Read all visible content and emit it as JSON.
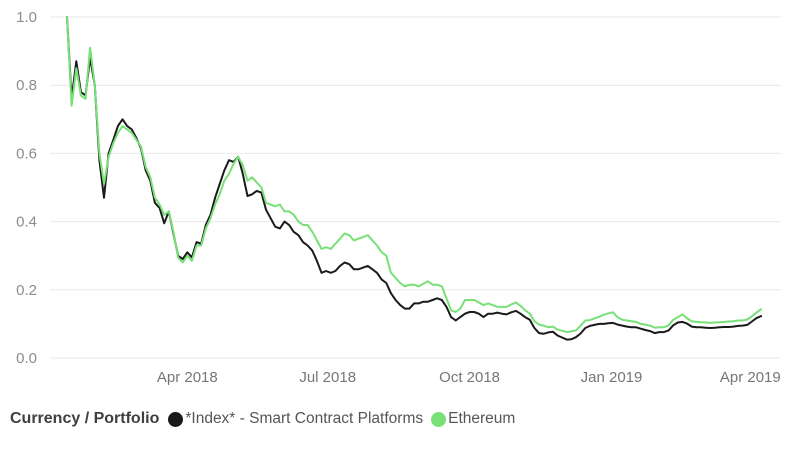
{
  "colors": {
    "background": "#ffffff",
    "gridline": "#e9e9e9",
    "y_label": "#8c8c8c",
    "x_label": "#767676",
    "legend_title": "#3f3f3f",
    "legend_text": "#565656"
  },
  "legend": {
    "title": "Currency / Portfolio"
  },
  "chart_data": {
    "type": "line",
    "title": "",
    "xlabel": "",
    "ylabel": "",
    "grid": "horizontal-only",
    "legend_position": "bottom-left",
    "x_axis": {
      "start_date": "2018-01-13",
      "end_date": "2019-04-08",
      "interval_days": 3,
      "tick_labels": [
        "Apr 2018",
        "Jul 2018",
        "Oct 2018",
        "Jan 2019",
        "Apr 2019"
      ],
      "tick_day_offsets": [
        78,
        169,
        261,
        353,
        443
      ]
    },
    "y_axis": {
      "range": [
        0.0,
        1.0
      ],
      "tick_labels": [
        "0.0",
        "0.2",
        "0.4",
        "0.6",
        "0.8",
        "1.0"
      ]
    },
    "series": [
      {
        "name": "*Index* - Smart Contract Platforms",
        "color": "#1a1a1a",
        "values": [
          1.0,
          0.76,
          0.87,
          0.78,
          0.77,
          0.88,
          0.8,
          0.58,
          0.47,
          0.6,
          0.64,
          0.68,
          0.7,
          0.68,
          0.67,
          0.645,
          0.615,
          0.55,
          0.52,
          0.455,
          0.44,
          0.395,
          0.43,
          0.365,
          0.3,
          0.29,
          0.31,
          0.295,
          0.34,
          0.335,
          0.39,
          0.42,
          0.47,
          0.51,
          0.55,
          0.58,
          0.575,
          0.59,
          0.54,
          0.475,
          0.48,
          0.49,
          0.485,
          0.435,
          0.41,
          0.385,
          0.38,
          0.4,
          0.39,
          0.37,
          0.36,
          0.34,
          0.33,
          0.315,
          0.285,
          0.25,
          0.255,
          0.25,
          0.255,
          0.27,
          0.28,
          0.275,
          0.26,
          0.26,
          0.265,
          0.27,
          0.26,
          0.25,
          0.23,
          0.22,
          0.19,
          0.17,
          0.155,
          0.145,
          0.145,
          0.16,
          0.16,
          0.165,
          0.165,
          0.17,
          0.175,
          0.17,
          0.15,
          0.12,
          0.11,
          0.12,
          0.13,
          0.135,
          0.135,
          0.13,
          0.12,
          0.13,
          0.13,
          0.133,
          0.13,
          0.128,
          0.134,
          0.138,
          0.13,
          0.12,
          0.112,
          0.088,
          0.073,
          0.071,
          0.075,
          0.077,
          0.066,
          0.06,
          0.054,
          0.055,
          0.061,
          0.072,
          0.088,
          0.094,
          0.097,
          0.1,
          0.1,
          0.102,
          0.103,
          0.098,
          0.095,
          0.092,
          0.09,
          0.09,
          0.086,
          0.082,
          0.079,
          0.073,
          0.076,
          0.076,
          0.081,
          0.096,
          0.104,
          0.106,
          0.101,
          0.092,
          0.09,
          0.09,
          0.089,
          0.088,
          0.089,
          0.09,
          0.091,
          0.091,
          0.092,
          0.094,
          0.095,
          0.097,
          0.107,
          0.117,
          0.123
        ]
      },
      {
        "name": "Ethereum",
        "color": "#77e077",
        "values": [
          1.0,
          0.74,
          0.85,
          0.77,
          0.76,
          0.91,
          0.8,
          0.6,
          0.51,
          0.59,
          0.63,
          0.66,
          0.68,
          0.67,
          0.66,
          0.64,
          0.62,
          0.56,
          0.53,
          0.47,
          0.45,
          0.42,
          0.43,
          0.37,
          0.295,
          0.28,
          0.3,
          0.285,
          0.33,
          0.33,
          0.38,
          0.41,
          0.45,
          0.48,
          0.52,
          0.54,
          0.57,
          0.59,
          0.565,
          0.52,
          0.53,
          0.515,
          0.5,
          0.455,
          0.45,
          0.445,
          0.45,
          0.43,
          0.43,
          0.42,
          0.4,
          0.39,
          0.39,
          0.37,
          0.345,
          0.32,
          0.325,
          0.32,
          0.335,
          0.35,
          0.365,
          0.36,
          0.345,
          0.35,
          0.355,
          0.36,
          0.345,
          0.33,
          0.31,
          0.3,
          0.25,
          0.235,
          0.22,
          0.21,
          0.215,
          0.215,
          0.21,
          0.218,
          0.225,
          0.215,
          0.215,
          0.21,
          0.175,
          0.14,
          0.135,
          0.145,
          0.17,
          0.17,
          0.17,
          0.163,
          0.155,
          0.16,
          0.155,
          0.15,
          0.15,
          0.15,
          0.157,
          0.163,
          0.153,
          0.14,
          0.13,
          0.108,
          0.098,
          0.095,
          0.09,
          0.092,
          0.083,
          0.08,
          0.076,
          0.078,
          0.081,
          0.095,
          0.11,
          0.111,
          0.116,
          0.121,
          0.127,
          0.131,
          0.134,
          0.119,
          0.112,
          0.11,
          0.108,
          0.106,
          0.1,
          0.098,
          0.095,
          0.089,
          0.09,
          0.09,
          0.096,
          0.112,
          0.12,
          0.128,
          0.116,
          0.108,
          0.106,
          0.105,
          0.104,
          0.103,
          0.104,
          0.105,
          0.106,
          0.107,
          0.108,
          0.11,
          0.11,
          0.113,
          0.122,
          0.133,
          0.143
        ]
      }
    ]
  }
}
